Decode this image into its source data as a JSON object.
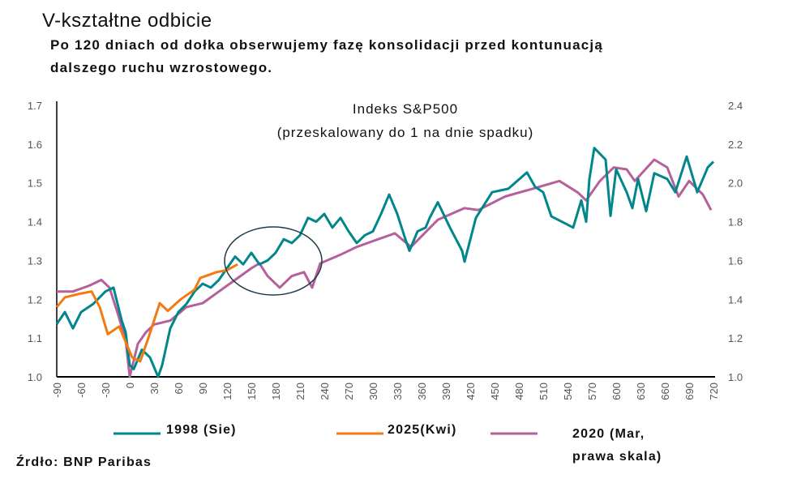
{
  "title": "V-kształtne odbicie",
  "subtitle": [
    "Po 120 dniach od dołka obserwujemy fazę konsolidacji przed kontunuacją",
    "dalszego ruchu wzrostowego."
  ],
  "source": "Źrdło: BNP Paribas",
  "chart_data": {
    "type": "line",
    "title": [
      "Indeks S&P500",
      "(przeskalowany do 1 na dnie spadku)"
    ],
    "xlim": [
      -90,
      720
    ],
    "x_ticks": [
      "-90",
      "-60",
      "-30",
      "0",
      "30",
      "60",
      "90",
      "120",
      "150",
      "180",
      "210",
      "240",
      "270",
      "300",
      "330",
      "360",
      "390",
      "420",
      "450",
      "480",
      "510",
      "540",
      "570",
      "600",
      "630",
      "660",
      "690",
      "720"
    ],
    "ylim_left": [
      1.0,
      1.7
    ],
    "y_ticks_left": [
      "1.0",
      "1.1",
      "1.2",
      "1.3",
      "1.4",
      "1.5",
      "1.6",
      "1.7"
    ],
    "ylim_right": [
      1.0,
      2.4
    ],
    "y_ticks_right": [
      "1.0",
      "1.2",
      "1.4",
      "1.6",
      "1.8",
      "2.0",
      "2.2",
      "2.4"
    ],
    "legend_placement": "bottom",
    "annotation": "ellipse around days ~120-240",
    "series": [
      {
        "name": "1998 (Sie)",
        "color": "#00868B",
        "axis": "left",
        "points": [
          [
            -90,
            1.136
          ],
          [
            -80,
            1.167
          ],
          [
            -70,
            1.125
          ],
          [
            -60,
            1.167
          ],
          [
            -45,
            1.188
          ],
          [
            -30,
            1.22
          ],
          [
            -20,
            1.23
          ],
          [
            -10,
            1.146
          ],
          [
            -5,
            1.115
          ],
          [
            0,
            1.03
          ],
          [
            5,
            1.02
          ],
          [
            15,
            1.07
          ],
          [
            25,
            1.05
          ],
          [
            35,
            1.0
          ],
          [
            40,
            1.03
          ],
          [
            50,
            1.125
          ],
          [
            60,
            1.167
          ],
          [
            70,
            1.188
          ],
          [
            80,
            1.22
          ],
          [
            90,
            1.24
          ],
          [
            100,
            1.23
          ],
          [
            110,
            1.25
          ],
          [
            120,
            1.28
          ],
          [
            130,
            1.31
          ],
          [
            140,
            1.29
          ],
          [
            150,
            1.32
          ],
          [
            160,
            1.29
          ],
          [
            170,
            1.3
          ],
          [
            180,
            1.32
          ],
          [
            190,
            1.355
          ],
          [
            200,
            1.345
          ],
          [
            210,
            1.365
          ],
          [
            220,
            1.41
          ],
          [
            230,
            1.4
          ],
          [
            240,
            1.42
          ],
          [
            250,
            1.385
          ],
          [
            260,
            1.41
          ],
          [
            270,
            1.375
          ],
          [
            280,
            1.345
          ],
          [
            290,
            1.365
          ],
          [
            300,
            1.375
          ],
          [
            310,
            1.42
          ],
          [
            320,
            1.47
          ],
          [
            330,
            1.42
          ],
          [
            340,
            1.355
          ],
          [
            345,
            1.325
          ],
          [
            355,
            1.375
          ],
          [
            365,
            1.385
          ],
          [
            370,
            1.41
          ],
          [
            380,
            1.45
          ],
          [
            395,
            1.385
          ],
          [
            410,
            1.325
          ],
          [
            413,
            1.297
          ],
          [
            427,
            1.41
          ],
          [
            447,
            1.476
          ],
          [
            467,
            1.485
          ],
          [
            490,
            1.527
          ],
          [
            500,
            1.49
          ],
          [
            510,
            1.476
          ],
          [
            520,
            1.414
          ],
          [
            533,
            1.4
          ],
          [
            547,
            1.385
          ],
          [
            557,
            1.455
          ],
          [
            563,
            1.4
          ],
          [
            567,
            1.51
          ],
          [
            573,
            1.59
          ],
          [
            587,
            1.56
          ],
          [
            593,
            1.415
          ],
          [
            600,
            1.535
          ],
          [
            613,
            1.476
          ],
          [
            620,
            1.435
          ],
          [
            627,
            1.51
          ],
          [
            637,
            1.427
          ],
          [
            647,
            1.525
          ],
          [
            663,
            1.51
          ],
          [
            673,
            1.476
          ],
          [
            687,
            1.568
          ],
          [
            700,
            1.476
          ],
          [
            713,
            1.54
          ],
          [
            720,
            1.555
          ]
        ]
      },
      {
        "name": "2025(Kwi)",
        "color": "#F47A10",
        "axis": "left",
        "points": [
          [
            -90,
            1.18
          ],
          [
            -80,
            1.205
          ],
          [
            -60,
            1.215
          ],
          [
            -47,
            1.22
          ],
          [
            -37,
            1.18
          ],
          [
            -27,
            1.11
          ],
          [
            -13,
            1.13
          ],
          [
            -3,
            1.08
          ],
          [
            3,
            1.05
          ],
          [
            13,
            1.04
          ],
          [
            23,
            1.1
          ],
          [
            37,
            1.19
          ],
          [
            47,
            1.17
          ],
          [
            63,
            1.2
          ],
          [
            80,
            1.225
          ],
          [
            87,
            1.255
          ],
          [
            107,
            1.27
          ],
          [
            120,
            1.275
          ],
          [
            133,
            1.29
          ]
        ]
      },
      {
        "name": "2020 (Mar, prawa skala)",
        "legend_lines": [
          "2020 (Mar,",
          "prawa skala)"
        ],
        "color": "#B5609A",
        "axis": "right",
        "points": [
          [
            -90,
            1.44
          ],
          [
            -70,
            1.44
          ],
          [
            -50,
            1.47
          ],
          [
            -35,
            1.5
          ],
          [
            -25,
            1.46
          ],
          [
            -15,
            1.33
          ],
          [
            -5,
            1.19
          ],
          [
            0,
            1.0
          ],
          [
            10,
            1.17
          ],
          [
            20,
            1.23
          ],
          [
            30,
            1.27
          ],
          [
            50,
            1.29
          ],
          [
            70,
            1.36
          ],
          [
            90,
            1.38
          ],
          [
            110,
            1.44
          ],
          [
            130,
            1.5
          ],
          [
            150,
            1.56
          ],
          [
            160,
            1.585
          ],
          [
            170,
            1.52
          ],
          [
            185,
            1.46
          ],
          [
            200,
            1.52
          ],
          [
            215,
            1.54
          ],
          [
            225,
            1.46
          ],
          [
            235,
            1.585
          ],
          [
            260,
            1.63
          ],
          [
            280,
            1.67
          ],
          [
            300,
            1.7
          ],
          [
            327,
            1.74
          ],
          [
            347,
            1.67
          ],
          [
            380,
            1.81
          ],
          [
            413,
            1.87
          ],
          [
            430,
            1.86
          ],
          [
            463,
            1.93
          ],
          [
            497,
            1.97
          ],
          [
            530,
            2.01
          ],
          [
            553,
            1.95
          ],
          [
            563,
            1.91
          ],
          [
            580,
            2.01
          ],
          [
            597,
            2.08
          ],
          [
            613,
            2.07
          ],
          [
            623,
            2.01
          ],
          [
            647,
            2.12
          ],
          [
            663,
            2.08
          ],
          [
            677,
            1.93
          ],
          [
            690,
            2.01
          ],
          [
            707,
            1.94
          ],
          [
            717,
            1.86
          ]
        ]
      }
    ]
  }
}
